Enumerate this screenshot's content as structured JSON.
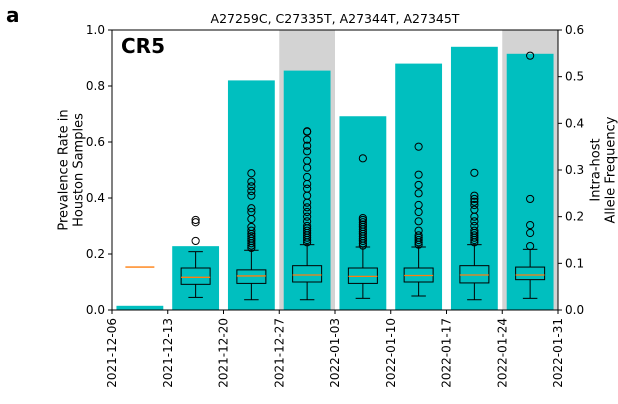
{
  "panel_letter": "a",
  "panel_tag": "CR5",
  "chart_data": {
    "type": "bar",
    "title": "A27259C, C27335T, A27344T, A27345T",
    "ylabel_left": "Prevalence Rate in\nHouston Samples",
    "ylabel_right": "Intra-host\nAllele Frequency",
    "ylim_left": [
      0,
      1.0
    ],
    "ylim_right": [
      0,
      0.6
    ],
    "yticks_left": [
      "0.0",
      "0.2",
      "0.4",
      "0.6",
      "0.8",
      "1.0"
    ],
    "yticks_right": [
      "0.0",
      "0.1",
      "0.2",
      "0.3",
      "0.4",
      "0.5",
      "0.6"
    ],
    "x_tick_labels": [
      "2021-12-06",
      "2021-12-13",
      "2021-12-20",
      "2021-12-27",
      "2022-01-03",
      "2022-01-10",
      "2022-01-17",
      "2022-01-24",
      "2022-01-31"
    ],
    "grid": false,
    "bar_color": "#00bfbf",
    "median_color": "#ff7f0e",
    "shade_color": "#d3d3d3",
    "shaded_weeks": [
      3,
      7
    ],
    "bars": [
      0.015,
      0.228,
      0.82,
      0.855,
      0.692,
      0.88,
      0.94,
      0.915
    ],
    "boxes": [
      {
        "week": 0,
        "median": 0.092,
        "q1": 0.092,
        "q3": 0.092,
        "whislo": 0.092,
        "whishi": 0.092,
        "fliers": []
      },
      {
        "week": 1,
        "median": 0.07,
        "q1": 0.055,
        "q3": 0.09,
        "whislo": 0.027,
        "whishi": 0.125,
        "fliers": [
          0.148,
          0.188,
          0.193
        ]
      },
      {
        "week": 2,
        "median": 0.073,
        "q1": 0.057,
        "q3": 0.086,
        "whislo": 0.022,
        "whishi": 0.128,
        "fliers": [
          0.133,
          0.138,
          0.143,
          0.148,
          0.153,
          0.158,
          0.163,
          0.17,
          0.178,
          0.195,
          0.21,
          0.218,
          0.245,
          0.255,
          0.265,
          0.275,
          0.293
        ]
      },
      {
        "week": 3,
        "median": 0.075,
        "q1": 0.06,
        "q3": 0.095,
        "whislo": 0.022,
        "whishi": 0.14,
        "fliers": [
          0.145,
          0.15,
          0.155,
          0.16,
          0.165,
          0.17,
          0.175,
          0.18,
          0.19,
          0.2,
          0.21,
          0.22,
          0.23,
          0.245,
          0.26,
          0.27,
          0.285,
          0.305,
          0.32,
          0.34,
          0.352,
          0.365,
          0.382,
          0.383
        ]
      },
      {
        "week": 4,
        "median": 0.072,
        "q1": 0.057,
        "q3": 0.09,
        "whislo": 0.025,
        "whishi": 0.135,
        "fliers": [
          0.138,
          0.143,
          0.148,
          0.153,
          0.158,
          0.163,
          0.168,
          0.173,
          0.178,
          0.183,
          0.188,
          0.193,
          0.197,
          0.325
        ]
      },
      {
        "week": 5,
        "median": 0.074,
        "q1": 0.06,
        "q3": 0.09,
        "whislo": 0.03,
        "whishi": 0.135,
        "fliers": [
          0.14,
          0.145,
          0.15,
          0.155,
          0.16,
          0.17,
          0.19,
          0.21,
          0.225,
          0.25,
          0.268,
          0.29,
          0.35
        ]
      },
      {
        "week": 6,
        "median": 0.075,
        "q1": 0.058,
        "q3": 0.095,
        "whislo": 0.022,
        "whishi": 0.14,
        "fliers": [
          0.145,
          0.15,
          0.155,
          0.16,
          0.165,
          0.17,
          0.18,
          0.19,
          0.2,
          0.215,
          0.225,
          0.232,
          0.238,
          0.245,
          0.294
        ]
      },
      {
        "week": 7,
        "median": 0.075,
        "q1": 0.065,
        "q3": 0.092,
        "whislo": 0.025,
        "whishi": 0.13,
        "fliers": [
          0.137,
          0.165,
          0.182,
          0.238,
          0.545
        ]
      }
    ]
  }
}
